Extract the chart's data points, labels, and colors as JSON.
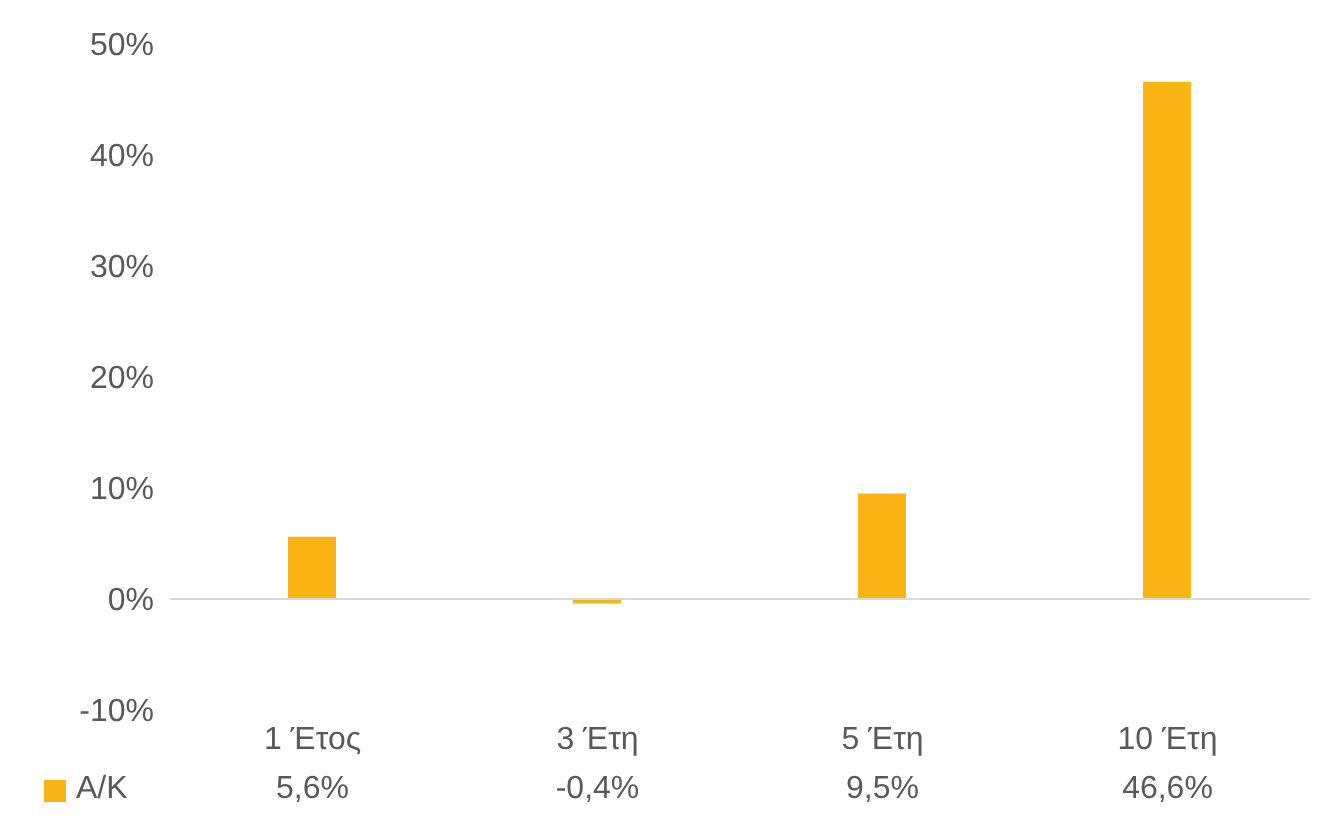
{
  "chart_data": {
    "type": "bar",
    "categories": [
      "1 Έτος",
      "3 Έτη",
      "5 Έτη",
      "10 Έτη"
    ],
    "series": [
      {
        "name": "Α/Κ",
        "color": "#fbb416",
        "values": [
          5.6,
          -0.4,
          9.5,
          46.6
        ],
        "value_labels": [
          "5,6%",
          "-0,4%",
          "9,5%",
          "46,6%"
        ]
      }
    ],
    "ylim": [
      -10,
      50
    ],
    "yticks": [
      {
        "value": -10,
        "label": "-10%"
      },
      {
        "value": 0,
        "label": "0%"
      },
      {
        "value": 10,
        "label": "10%"
      },
      {
        "value": 20,
        "label": "20%"
      },
      {
        "value": 30,
        "label": "30%"
      },
      {
        "value": 40,
        "label": "40%"
      },
      {
        "value": 50,
        "label": "50%"
      }
    ],
    "legend": "bottom"
  }
}
